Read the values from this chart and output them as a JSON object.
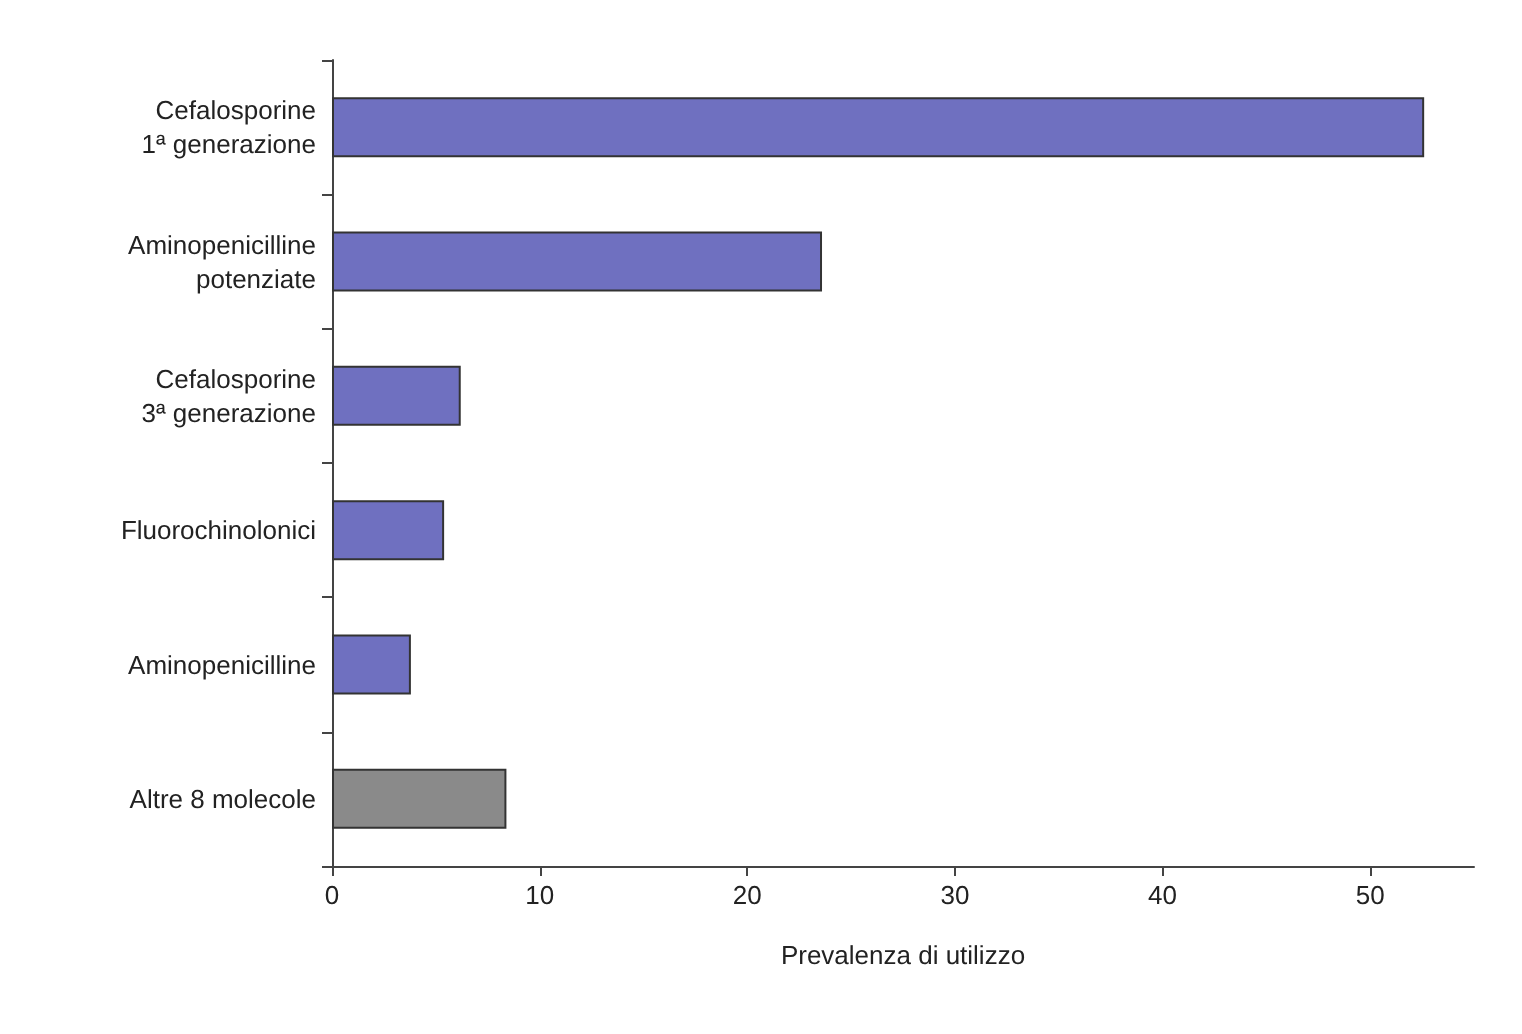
{
  "chart_data": {
    "type": "bar",
    "orientation": "horizontal",
    "xlabel": "Prevalenza di utilizzo",
    "categories": [
      "Cefalosporine\n1ª generazione",
      "Aminopenicilline\npotenziate",
      "Cefalosporine\n3ª generazione",
      "Fluorochinolonici",
      "Aminopenicilline",
      "Altre 8 molecole"
    ],
    "values": [
      52.6,
      23.6,
      6.2,
      5.4,
      3.8,
      8.4
    ],
    "colors": [
      "#6f70c0",
      "#6f70c0",
      "#6f70c0",
      "#6f70c0",
      "#6f70c0",
      "#8a8a8a"
    ],
    "xlim": [
      0,
      55
    ],
    "xticks": [
      0,
      10,
      20,
      30,
      40,
      50
    ],
    "grid": false
  }
}
